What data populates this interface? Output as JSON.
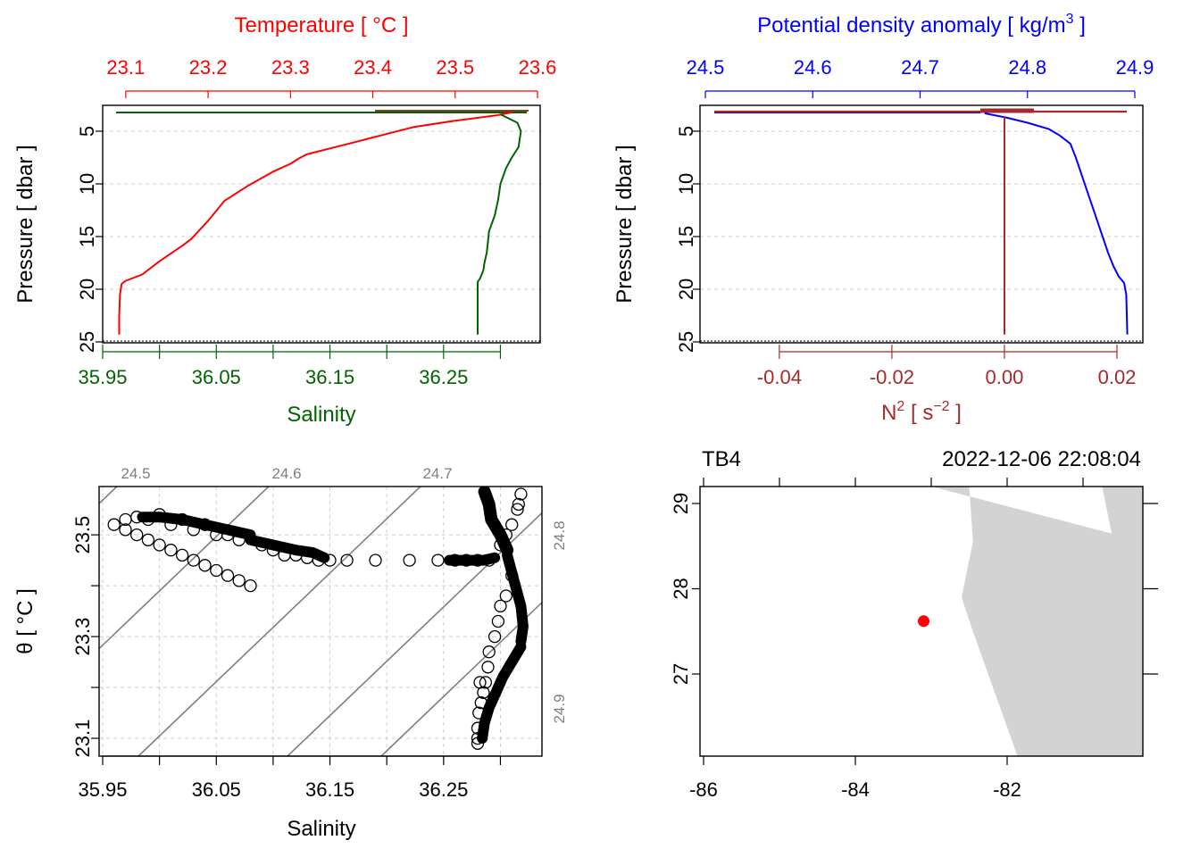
{
  "colors": {
    "temperature": "#ff0000",
    "salinity": "#006400",
    "density": "#0000ff",
    "n2": "#a52a2a",
    "frame": "#000000",
    "grid": "#cccccc",
    "isopycnal": "#7f7f7f",
    "land": "#d3d3d3",
    "station": "#ff0000"
  },
  "chart_data": [
    {
      "type": "line",
      "panel": "temperature-salinity-profile",
      "title": "Temperature [ °C ]",
      "xlabel": "Salinity",
      "ylabel": "Pressure [ dbar ]",
      "ylim": [
        25,
        2.8
      ],
      "y_ticks": [
        5,
        10,
        15,
        20,
        25
      ],
      "top_axis": {
        "range": [
          23.085,
          23.6
        ],
        "ticks": [
          23.1,
          23.2,
          23.3,
          23.4,
          23.5,
          23.6
        ],
        "color": "#ff0000"
      },
      "bottom_axis": {
        "range": [
          35.95,
          36.335
        ],
        "ticks": [
          35.95,
          36.0,
          36.05,
          36.1,
          36.15,
          36.2,
          36.25,
          36.3
        ],
        "labels": [
          "35.95",
          "",
          "36.05",
          "",
          "36.15",
          "",
          "36.25",
          ""
        ],
        "color": "#006400"
      },
      "grid": true,
      "series": [
        {
          "name": "Temperature",
          "axis": "top",
          "x": [
            23.57,
            23.55,
            23.5,
            23.45,
            23.42,
            23.4,
            23.38,
            23.35,
            23.32,
            23.31,
            23.3,
            23.28,
            23.25,
            23.22,
            23.2,
            23.18,
            23.17,
            23.14,
            23.12,
            23.1,
            23.095,
            23.093,
            23.092,
            23.092
          ],
          "y": [
            3.2,
            3.5,
            4.0,
            4.6,
            5.2,
            5.6,
            6.0,
            6.6,
            7.2,
            7.6,
            8.1,
            8.8,
            10.1,
            11.6,
            13.5,
            15.2,
            15.8,
            17.4,
            18.6,
            19.2,
            19.5,
            20.5,
            22.5,
            24.3
          ]
        },
        {
          "name": "Salinity",
          "axis": "bottom",
          "x": [
            36.3,
            36.315,
            36.318,
            36.316,
            36.31,
            36.305,
            36.3,
            36.298,
            36.295,
            36.29,
            36.289,
            36.288,
            36.286,
            36.285,
            36.282,
            36.28,
            36.28
          ],
          "y": [
            3.4,
            4.2,
            5.0,
            6.5,
            7.5,
            8.5,
            10.0,
            11.5,
            13.0,
            14.5,
            15.5,
            16.5,
            17.5,
            18.2,
            19.0,
            19.3,
            24.3
          ]
        }
      ]
    },
    {
      "type": "line",
      "panel": "density-n2-profile",
      "title": "Potential density anomaly [ kg/m3 ]",
      "xlabel": "N2 [ s-2 ]",
      "ylabel": "Pressure [ dbar ]",
      "ylim": [
        25,
        2.8
      ],
      "y_ticks": [
        5,
        10,
        15,
        20,
        25
      ],
      "top_axis": {
        "range": [
          24.5,
          24.9
        ],
        "ticks": [
          24.5,
          24.6,
          24.7,
          24.8,
          24.9
        ],
        "color": "#0000ff"
      },
      "bottom_axis": {
        "range": [
          -0.0541,
          0.0246
        ],
        "ticks": [
          -0.04,
          -0.02,
          0.0,
          0.02
        ],
        "labels": [
          "-0.04",
          "-0.02",
          "0.00",
          "0.02"
        ],
        "color": "#a52a2a"
      },
      "grid": true,
      "series": [
        {
          "name": "Potential density anomaly",
          "axis": "top",
          "x": [
            24.76,
            24.78,
            24.8,
            24.82,
            24.83,
            24.84,
            24.845,
            24.85,
            24.855,
            24.86,
            24.865,
            24.87,
            24.875,
            24.88,
            24.885,
            24.89,
            24.892,
            24.893
          ],
          "y": [
            3.3,
            3.7,
            4.2,
            4.8,
            5.4,
            6.2,
            7.5,
            9.0,
            10.5,
            12.0,
            13.5,
            15.0,
            16.5,
            17.8,
            18.8,
            19.4,
            20.5,
            24.3
          ]
        },
        {
          "name": "N2",
          "axis": "bottom",
          "x": [
            0.0,
            0.0,
            0.0,
            0.0
          ],
          "y": [
            3.6,
            10.0,
            20.0,
            24.3
          ]
        }
      ]
    },
    {
      "type": "scatter",
      "panel": "ts-diagram",
      "xlabel": "Salinity",
      "ylabel": "θ [ °C ]",
      "xlim": [
        35.95,
        36.335
      ],
      "ylim": [
        23.065,
        23.595
      ],
      "x_ticks": [
        35.95,
        36.0,
        36.05,
        36.1,
        36.15,
        36.2,
        36.25,
        36.3
      ],
      "x_labels": [
        "35.95",
        "",
        "36.05",
        "",
        "36.15",
        "",
        "36.25",
        ""
      ],
      "y_ticks": [
        23.1,
        23.2,
        23.3,
        23.4,
        23.5
      ],
      "y_labels": [
        "23.1",
        "",
        "23.3",
        "",
        "23.5"
      ],
      "grid": true,
      "isopycnal_labels": [
        "24.5",
        "24.6",
        "24.7",
        "24.8",
        "24.9"
      ],
      "series": [
        {
          "name": "Observations",
          "x": [
            35.96,
            35.97,
            35.98,
            35.99,
            36.0,
            36.01,
            36.02,
            36.03,
            36.04,
            36.05,
            36.06,
            36.07,
            36.08,
            35.97,
            35.99,
            36.01,
            36.03,
            36.05,
            36.07,
            35.98,
            36.0,
            36.02,
            36.04,
            36.06,
            36.09,
            36.1,
            36.11,
            36.12,
            36.13,
            36.14,
            36.15,
            36.165,
            36.19,
            36.22,
            36.245,
            36.26,
            36.27,
            36.28,
            36.29,
            36.3,
            36.305,
            36.31,
            36.315,
            36.318,
            36.316,
            36.31,
            36.305,
            36.3,
            36.298,
            36.295,
            36.29,
            36.289,
            36.287,
            36.285,
            36.283,
            36.281,
            36.28,
            36.28,
            36.28,
            36.282
          ],
          "y": [
            23.52,
            23.51,
            23.5,
            23.49,
            23.48,
            23.47,
            23.46,
            23.45,
            23.44,
            23.43,
            23.42,
            23.41,
            23.4,
            23.53,
            23.53,
            23.52,
            23.51,
            23.5,
            23.49,
            23.535,
            23.54,
            23.53,
            23.52,
            23.5,
            23.48,
            23.47,
            23.46,
            23.46,
            23.455,
            23.45,
            23.45,
            23.45,
            23.45,
            23.45,
            23.45,
            23.45,
            23.45,
            23.45,
            23.45,
            23.48,
            23.5,
            23.52,
            23.55,
            23.58,
            23.56,
            23.42,
            23.38,
            23.36,
            23.33,
            23.3,
            23.27,
            23.24,
            23.21,
            23.19,
            23.17,
            23.15,
            23.12,
            23.1,
            23.09,
            23.21
          ]
        }
      ]
    },
    {
      "type": "map",
      "panel": "station-map",
      "station": "TB4",
      "datetime": "2022-12-06 22:08:04",
      "xlim": [
        -86.05,
        -79.8
      ],
      "ylim": [
        26.0,
        29.2
      ],
      "x_ticks": [
        -86,
        -84,
        -82
      ],
      "x_labels": [
        "-86",
        "-84",
        "-82"
      ],
      "x_minor_ticks": [
        -85,
        -83,
        -81
      ],
      "y_ticks": [
        27,
        28,
        29
      ],
      "y_labels": [
        "27",
        "28",
        "29"
      ],
      "station_location": {
        "lon": -83.1,
        "lat": 27.62
      },
      "land_polygon": {
        "lon": [
          -83.0,
          -82.5,
          -82.45,
          -82.6,
          -82.45,
          -81.85,
          -80.05,
          -79.8,
          -79.8,
          -79.8,
          -80.4,
          -80.75,
          -80.45,
          -80.2
        ],
        "lat": [
          29.2,
          29.2,
          28.55,
          27.9,
          27.5,
          26.0,
          26.0,
          26.0,
          27.3,
          29.2,
          29.2,
          29.2,
          27.9,
          28.55
        ]
      }
    }
  ]
}
